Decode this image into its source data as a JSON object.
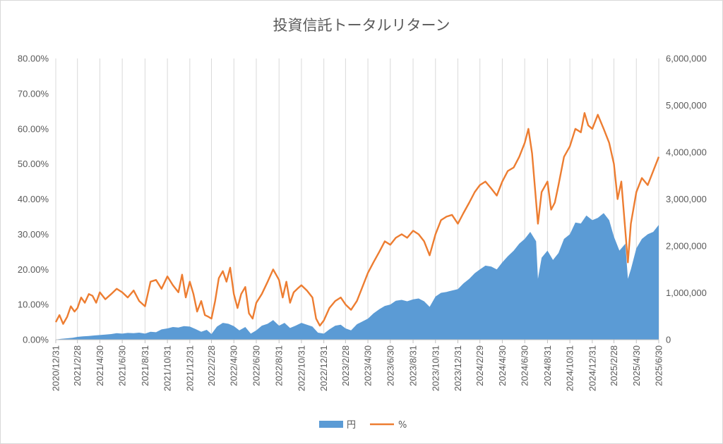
{
  "chart_data": {
    "type": "area+line",
    "title": "投資信託トータルリターン",
    "x_tick_labels": [
      "2020/12/31",
      "2021/2/28",
      "2021/4/30",
      "2021/6/30",
      "2021/8/31",
      "2021/10/31",
      "2021/12/31",
      "2022/2/28",
      "2022/4/30",
      "2022/6/30",
      "2022/8/31",
      "2022/10/31",
      "2022/12/31",
      "2023/2/28",
      "2023/4/30",
      "2023/6/30",
      "2023/8/31",
      "2023/10/31",
      "2023/12/31",
      "2024/2/29",
      "2024/4/30",
      "2024/6/30",
      "2024/8/31",
      "2024/10/31",
      "2024/12/31",
      "2025/2/28",
      "2025/4/30",
      "2025/6/30"
    ],
    "left_axis": {
      "min": 0,
      "max": 0.8,
      "ticks": [
        "0.00%",
        "10.00%",
        "20.00%",
        "30.00%",
        "40.00%",
        "50.00%",
        "60.00%",
        "70.00%",
        "80.00%"
      ]
    },
    "right_axis": {
      "min": 0,
      "max": 6000000,
      "ticks": [
        "0",
        "1,000,000",
        "2,000,000",
        "3,000,000",
        "4,000,000",
        "5,000,000",
        "6,000,000"
      ]
    },
    "grid": "vertical",
    "legend_position": "bottom",
    "series": [
      {
        "name": "円",
        "kind": "area",
        "axis": "right",
        "color": "#5b9bd5",
        "points": [
          [
            "2020-12-31",
            5000
          ],
          [
            "2021-01-15",
            20000
          ],
          [
            "2021-01-31",
            30000
          ],
          [
            "2021-02-15",
            40000
          ],
          [
            "2021-02-28",
            60000
          ],
          [
            "2021-03-15",
            70000
          ],
          [
            "2021-03-31",
            80000
          ],
          [
            "2021-04-15",
            90000
          ],
          [
            "2021-04-30",
            100000
          ],
          [
            "2021-05-15",
            110000
          ],
          [
            "2021-05-31",
            120000
          ],
          [
            "2021-06-15",
            140000
          ],
          [
            "2021-06-30",
            130000
          ],
          [
            "2021-07-15",
            145000
          ],
          [
            "2021-07-31",
            140000
          ],
          [
            "2021-08-15",
            150000
          ],
          [
            "2021-08-31",
            130000
          ],
          [
            "2021-09-15",
            170000
          ],
          [
            "2021-09-30",
            160000
          ],
          [
            "2021-10-15",
            220000
          ],
          [
            "2021-10-31",
            240000
          ],
          [
            "2021-11-15",
            270000
          ],
          [
            "2021-11-30",
            260000
          ],
          [
            "2021-12-15",
            290000
          ],
          [
            "2021-12-31",
            280000
          ],
          [
            "2022-01-15",
            230000
          ],
          [
            "2022-01-31",
            170000
          ],
          [
            "2022-02-15",
            210000
          ],
          [
            "2022-02-28",
            120000
          ],
          [
            "2022-03-15",
            280000
          ],
          [
            "2022-03-31",
            360000
          ],
          [
            "2022-04-15",
            340000
          ],
          [
            "2022-04-30",
            290000
          ],
          [
            "2022-05-15",
            200000
          ],
          [
            "2022-05-31",
            270000
          ],
          [
            "2022-06-15",
            130000
          ],
          [
            "2022-06-30",
            200000
          ],
          [
            "2022-07-15",
            300000
          ],
          [
            "2022-07-31",
            340000
          ],
          [
            "2022-08-15",
            420000
          ],
          [
            "2022-08-31",
            300000
          ],
          [
            "2022-09-15",
            360000
          ],
          [
            "2022-09-30",
            250000
          ],
          [
            "2022-10-15",
            300000
          ],
          [
            "2022-10-31",
            360000
          ],
          [
            "2022-11-15",
            320000
          ],
          [
            "2022-11-30",
            280000
          ],
          [
            "2022-12-15",
            150000
          ],
          [
            "2022-12-31",
            130000
          ],
          [
            "2023-01-15",
            220000
          ],
          [
            "2023-01-31",
            300000
          ],
          [
            "2023-02-15",
            320000
          ],
          [
            "2023-02-28",
            240000
          ],
          [
            "2023-03-15",
            200000
          ],
          [
            "2023-03-31",
            330000
          ],
          [
            "2023-04-15",
            390000
          ],
          [
            "2023-04-30",
            450000
          ],
          [
            "2023-05-15",
            560000
          ],
          [
            "2023-05-31",
            650000
          ],
          [
            "2023-06-15",
            720000
          ],
          [
            "2023-06-30",
            750000
          ],
          [
            "2023-07-15",
            830000
          ],
          [
            "2023-07-31",
            850000
          ],
          [
            "2023-08-15",
            820000
          ],
          [
            "2023-08-31",
            860000
          ],
          [
            "2023-09-15",
            880000
          ],
          [
            "2023-09-30",
            820000
          ],
          [
            "2023-10-15",
            700000
          ],
          [
            "2023-10-31",
            920000
          ],
          [
            "2023-11-15",
            1000000
          ],
          [
            "2023-11-30",
            1020000
          ],
          [
            "2023-12-15",
            1050000
          ],
          [
            "2023-12-31",
            1080000
          ],
          [
            "2024-01-15",
            1200000
          ],
          [
            "2024-01-31",
            1300000
          ],
          [
            "2024-02-15",
            1420000
          ],
          [
            "2024-02-29",
            1500000
          ],
          [
            "2024-03-15",
            1580000
          ],
          [
            "2024-03-31",
            1560000
          ],
          [
            "2024-04-15",
            1500000
          ],
          [
            "2024-04-30",
            1650000
          ],
          [
            "2024-05-15",
            1780000
          ],
          [
            "2024-05-31",
            1900000
          ],
          [
            "2024-06-15",
            2050000
          ],
          [
            "2024-06-30",
            2150000
          ],
          [
            "2024-07-15",
            2300000
          ],
          [
            "2024-07-31",
            2100000
          ],
          [
            "2024-08-05",
            1300000
          ],
          [
            "2024-08-15",
            1750000
          ],
          [
            "2024-08-31",
            1900000
          ],
          [
            "2024-09-15",
            1700000
          ],
          [
            "2024-09-30",
            1850000
          ],
          [
            "2024-10-15",
            2150000
          ],
          [
            "2024-10-31",
            2250000
          ],
          [
            "2024-11-15",
            2500000
          ],
          [
            "2024-11-30",
            2480000
          ],
          [
            "2024-12-15",
            2650000
          ],
          [
            "2024-12-31",
            2550000
          ],
          [
            "2025-01-15",
            2600000
          ],
          [
            "2025-01-31",
            2700000
          ],
          [
            "2025-02-15",
            2550000
          ],
          [
            "2025-02-28",
            2200000
          ],
          [
            "2025-03-15",
            1900000
          ],
          [
            "2025-03-31",
            2050000
          ],
          [
            "2025-04-07",
            1300000
          ],
          [
            "2025-04-15",
            1500000
          ],
          [
            "2025-04-30",
            1950000
          ],
          [
            "2025-05-15",
            2150000
          ],
          [
            "2025-05-31",
            2250000
          ],
          [
            "2025-06-15",
            2300000
          ],
          [
            "2025-06-30",
            2450000
          ]
        ]
      },
      {
        "name": "%",
        "kind": "line",
        "axis": "left",
        "color": "#ed7d31",
        "points": [
          [
            "2020-12-31",
            0.05
          ],
          [
            "2021-01-10",
            0.07
          ],
          [
            "2021-01-20",
            0.045
          ],
          [
            "2021-01-31",
            0.065
          ],
          [
            "2021-02-10",
            0.095
          ],
          [
            "2021-02-20",
            0.08
          ],
          [
            "2021-02-28",
            0.09
          ],
          [
            "2021-03-10",
            0.12
          ],
          [
            "2021-03-20",
            0.105
          ],
          [
            "2021-03-31",
            0.13
          ],
          [
            "2021-04-10",
            0.125
          ],
          [
            "2021-04-20",
            0.105
          ],
          [
            "2021-04-30",
            0.135
          ],
          [
            "2021-05-15",
            0.115
          ],
          [
            "2021-05-31",
            0.13
          ],
          [
            "2021-06-15",
            0.145
          ],
          [
            "2021-06-30",
            0.135
          ],
          [
            "2021-07-15",
            0.12
          ],
          [
            "2021-07-31",
            0.14
          ],
          [
            "2021-08-15",
            0.11
          ],
          [
            "2021-08-31",
            0.095
          ],
          [
            "2021-09-15",
            0.165
          ],
          [
            "2021-09-30",
            0.17
          ],
          [
            "2021-10-15",
            0.145
          ],
          [
            "2021-10-31",
            0.18
          ],
          [
            "2021-11-15",
            0.155
          ],
          [
            "2021-11-30",
            0.135
          ],
          [
            "2021-12-10",
            0.185
          ],
          [
            "2021-12-20",
            0.12
          ],
          [
            "2021-12-31",
            0.165
          ],
          [
            "2022-01-10",
            0.13
          ],
          [
            "2022-01-20",
            0.08
          ],
          [
            "2022-01-31",
            0.11
          ],
          [
            "2022-02-10",
            0.07
          ],
          [
            "2022-02-20",
            0.065
          ],
          [
            "2022-02-28",
            0.06
          ],
          [
            "2022-03-10",
            0.11
          ],
          [
            "2022-03-20",
            0.175
          ],
          [
            "2022-03-31",
            0.195
          ],
          [
            "2022-04-10",
            0.165
          ],
          [
            "2022-04-20",
            0.205
          ],
          [
            "2022-04-30",
            0.13
          ],
          [
            "2022-05-10",
            0.09
          ],
          [
            "2022-05-20",
            0.13
          ],
          [
            "2022-05-31",
            0.15
          ],
          [
            "2022-06-10",
            0.075
          ],
          [
            "2022-06-20",
            0.06
          ],
          [
            "2022-06-30",
            0.105
          ],
          [
            "2022-07-15",
            0.13
          ],
          [
            "2022-07-31",
            0.165
          ],
          [
            "2022-08-15",
            0.2
          ],
          [
            "2022-08-31",
            0.17
          ],
          [
            "2022-09-10",
            0.12
          ],
          [
            "2022-09-20",
            0.165
          ],
          [
            "2022-09-30",
            0.105
          ],
          [
            "2022-10-10",
            0.135
          ],
          [
            "2022-10-20",
            0.145
          ],
          [
            "2022-10-31",
            0.155
          ],
          [
            "2022-11-15",
            0.14
          ],
          [
            "2022-11-30",
            0.12
          ],
          [
            "2022-12-10",
            0.06
          ],
          [
            "2022-12-20",
            0.04
          ],
          [
            "2022-12-31",
            0.055
          ],
          [
            "2023-01-15",
            0.09
          ],
          [
            "2023-01-31",
            0.11
          ],
          [
            "2023-02-15",
            0.12
          ],
          [
            "2023-02-28",
            0.1
          ],
          [
            "2023-03-15",
            0.085
          ],
          [
            "2023-03-31",
            0.11
          ],
          [
            "2023-04-15",
            0.15
          ],
          [
            "2023-04-30",
            0.19
          ],
          [
            "2023-05-15",
            0.22
          ],
          [
            "2023-05-31",
            0.25
          ],
          [
            "2023-06-15",
            0.28
          ],
          [
            "2023-06-30",
            0.27
          ],
          [
            "2023-07-15",
            0.29
          ],
          [
            "2023-07-31",
            0.3
          ],
          [
            "2023-08-15",
            0.29
          ],
          [
            "2023-08-31",
            0.31
          ],
          [
            "2023-09-15",
            0.3
          ],
          [
            "2023-09-30",
            0.28
          ],
          [
            "2023-10-15",
            0.24
          ],
          [
            "2023-10-31",
            0.3
          ],
          [
            "2023-11-15",
            0.34
          ],
          [
            "2023-11-30",
            0.35
          ],
          [
            "2023-12-15",
            0.355
          ],
          [
            "2023-12-31",
            0.33
          ],
          [
            "2024-01-15",
            0.36
          ],
          [
            "2024-01-31",
            0.39
          ],
          [
            "2024-02-15",
            0.42
          ],
          [
            "2024-02-29",
            0.44
          ],
          [
            "2024-03-15",
            0.45
          ],
          [
            "2024-03-31",
            0.43
          ],
          [
            "2024-04-15",
            0.41
          ],
          [
            "2024-04-30",
            0.45
          ],
          [
            "2024-05-15",
            0.48
          ],
          [
            "2024-05-31",
            0.49
          ],
          [
            "2024-06-15",
            0.52
          ],
          [
            "2024-06-30",
            0.56
          ],
          [
            "2024-07-10",
            0.6
          ],
          [
            "2024-07-20",
            0.53
          ],
          [
            "2024-08-05",
            0.33
          ],
          [
            "2024-08-15",
            0.42
          ],
          [
            "2024-08-31",
            0.45
          ],
          [
            "2024-09-10",
            0.37
          ],
          [
            "2024-09-20",
            0.39
          ],
          [
            "2024-09-30",
            0.44
          ],
          [
            "2024-10-15",
            0.52
          ],
          [
            "2024-10-31",
            0.55
          ],
          [
            "2024-11-15",
            0.6
          ],
          [
            "2024-11-30",
            0.59
          ],
          [
            "2024-12-10",
            0.645
          ],
          [
            "2024-12-20",
            0.61
          ],
          [
            "2024-12-31",
            0.6
          ],
          [
            "2025-01-15",
            0.64
          ],
          [
            "2025-01-31",
            0.6
          ],
          [
            "2025-02-15",
            0.56
          ],
          [
            "2025-02-28",
            0.5
          ],
          [
            "2025-03-10",
            0.4
          ],
          [
            "2025-03-20",
            0.45
          ],
          [
            "2025-04-07",
            0.22
          ],
          [
            "2025-04-15",
            0.33
          ],
          [
            "2025-04-30",
            0.42
          ],
          [
            "2025-05-15",
            0.46
          ],
          [
            "2025-05-31",
            0.44
          ],
          [
            "2025-06-15",
            0.48
          ],
          [
            "2025-06-30",
            0.52
          ]
        ]
      }
    ]
  }
}
